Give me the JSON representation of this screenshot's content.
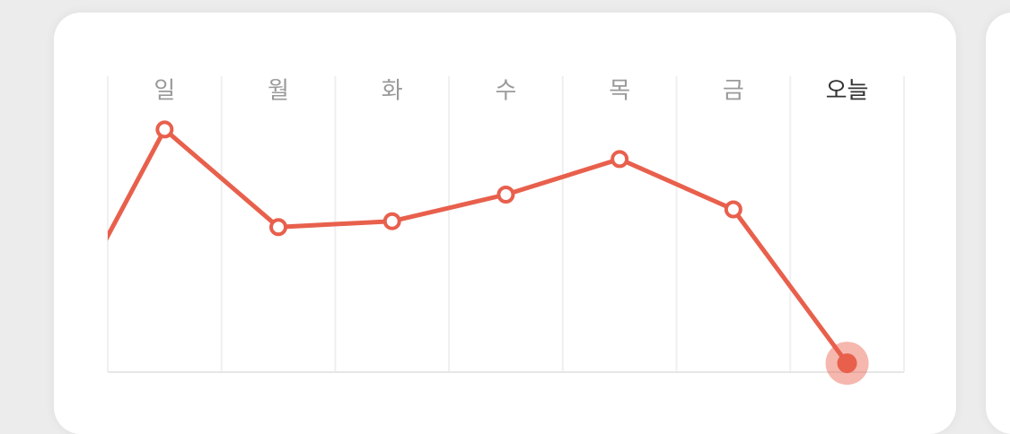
{
  "chart_data": {
    "type": "line",
    "categories": [
      null,
      "일",
      "월",
      "화",
      "수",
      "목",
      "금",
      "오늘"
    ],
    "values": [
      10,
      82,
      49,
      51,
      60,
      72,
      55,
      3
    ],
    "color": "#e8604c",
    "ylim": [
      0,
      100
    ],
    "grid": true
  }
}
